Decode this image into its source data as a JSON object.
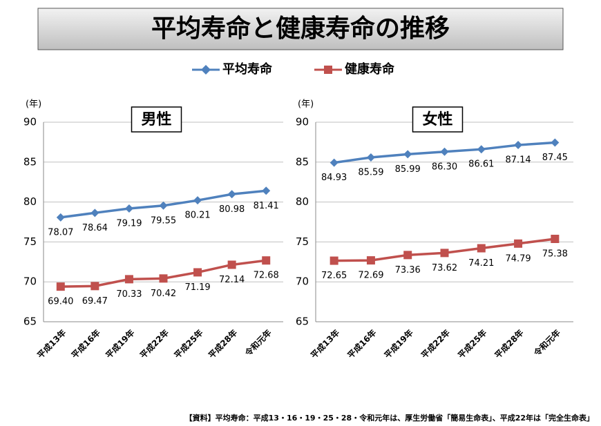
{
  "title": "平均寿命と健康寿命の推移",
  "note": "【資料】平均寿命：平成13・16・19・25・28・令和元年は、厚生労働省「簡易生命表」、平成22年は「完全生命表」",
  "chart_data": [
    {
      "type": "line",
      "title": "男性",
      "y_label": "(年)",
      "categories": [
        "平成13年",
        "平成16年",
        "平成19年",
        "平成22年",
        "平成25年",
        "平成28年",
        "令和元年"
      ],
      "series": [
        {
          "name": "平均寿命",
          "color": "#4f81bd",
          "values": [
            78.07,
            78.64,
            79.19,
            79.55,
            80.21,
            80.98,
            81.41
          ],
          "value_labels": [
            "78.07",
            "78.64",
            "79.19",
            "79.55",
            "80.21",
            "80.98",
            "81.41"
          ]
        },
        {
          "name": "健康寿命",
          "color": "#c0504d",
          "values": [
            69.4,
            69.47,
            70.33,
            70.42,
            71.19,
            72.14,
            72.68
          ],
          "value_labels": [
            "69.40",
            "69.47",
            "70.33",
            "70.42",
            "71.19",
            "72.14",
            "72.68"
          ]
        }
      ],
      "ylim": [
        65,
        90
      ],
      "yticks": [
        65,
        70,
        75,
        80,
        85,
        90
      ],
      "grid": true
    },
    {
      "type": "line",
      "title": "女性",
      "y_label": "(年)",
      "categories": [
        "平成13年",
        "平成16年",
        "平成19年",
        "平成22年",
        "平成25年",
        "平成28年",
        "令和元年"
      ],
      "series": [
        {
          "color": "#4f81bd",
          "values": [
            84.93,
            85.59,
            85.99,
            86.3,
            86.61,
            87.14,
            87.45
          ],
          "value_labels": [
            "84.93",
            "85.59",
            "85.99",
            "86.30",
            "86.61",
            "87.14",
            "87.45"
          ]
        },
        {
          "color": "#c0504d",
          "values": [
            72.65,
            72.69,
            73.36,
            73.62,
            74.21,
            74.79,
            75.38
          ],
          "value_labels": [
            "72.65",
            "72.69",
            "73.36",
            "73.62",
            "74.21",
            "74.79",
            "75.38"
          ]
        }
      ],
      "ylim": [
        65,
        90
      ],
      "yticks": [
        65,
        70,
        75,
        80,
        85,
        90
      ],
      "grid": true
    }
  ]
}
